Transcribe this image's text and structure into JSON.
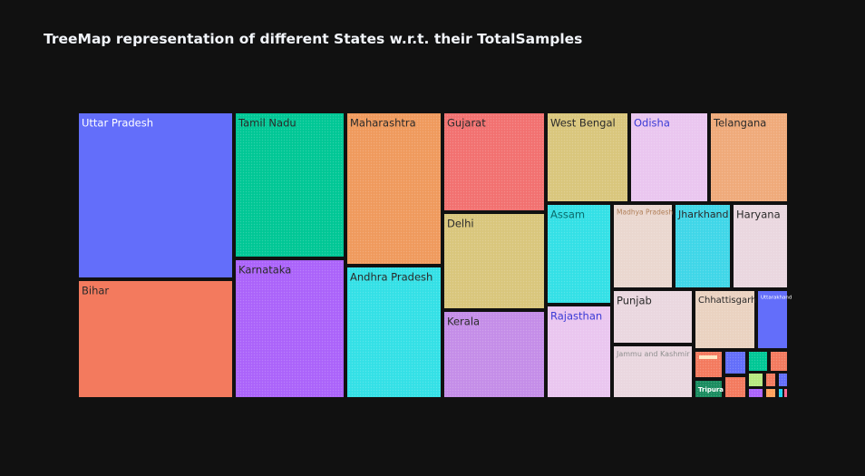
{
  "chart_data": {
    "type": "treemap",
    "title": "TreeMap representation of different States w.r.t. their TotalSamples",
    "colors": [
      "#636efa",
      "#ef553b",
      "#00cc96",
      "#ab63fa",
      "#ffa15a",
      "#19d3f3",
      "#ff6692",
      "#b6e880",
      "#ff97ff",
      "#fecb52"
    ],
    "tile_colors": {
      "Uttar Pradesh": "#636efa",
      "Bihar": "#f37a5e",
      "Tamil Nadu": "#00c795",
      "Karnataka": "#ab63fa",
      "Maharashtra": "#ef9a5d",
      "Andhra Pradesh": "#33e0e6",
      "Gujarat": "#f27170",
      "Delhi": "#d9c67c",
      "Kerala": "#c48de8",
      "West Bengal": "#d9c67c",
      "Odisha": "#eac6ef",
      "Telangana": "#efaa7a",
      "Assam": "#33e0e6",
      "Rajasthan": "#eac6ef",
      "Madhya Pradesh": "#ead7cf",
      "Jharkhand": "#3fd6e8",
      "Haryana": "#ead7df",
      "Punjab": "#ead7df",
      "Jammu and Kashmir": "#ead7df",
      "Chhattisgarh": "#ead2c0",
      "Uttarakhand": "#636efa",
      "Tripura": "#198c5f"
    },
    "labels": [
      "Uttar Pradesh",
      "Bihar",
      "Tamil Nadu",
      "Karnataka",
      "Maharashtra",
      "Andhra Pradesh",
      "Gujarat",
      "Delhi",
      "Kerala",
      "West Bengal",
      "Odisha",
      "Telangana",
      "Assam",
      "Rajasthan",
      "Madhya Pradesh",
      "Jharkhand",
      "Haryana",
      "Punjab",
      "Jammu and Kashmir",
      "Chhattisgarh",
      "Uttarakhand",
      "Tripura"
    ],
    "small_tiles": 13
  }
}
